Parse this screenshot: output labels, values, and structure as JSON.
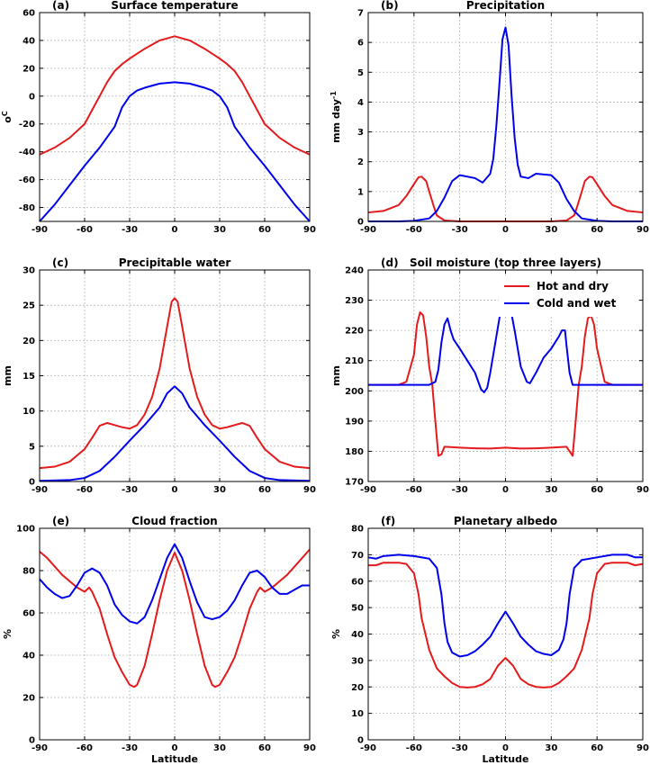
{
  "chart_data": [
    {
      "id": "a",
      "panel_label": "(a)",
      "type": "line",
      "title": "Surface temperature",
      "xlabel": "",
      "ylabel": "oC",
      "ylabel_base": "o",
      "ylabel_sup": "C",
      "xlim": [
        -90,
        90
      ],
      "ylim": [
        -90,
        60
      ],
      "xticks": [
        -90,
        -60,
        -30,
        0,
        30,
        60,
        90
      ],
      "yticks": [
        -80,
        -60,
        -40,
        -20,
        0,
        20,
        40,
        60
      ],
      "grid": true,
      "series": [
        {
          "color": "#e41a1c",
          "x": [
            -90,
            -80,
            -70,
            -60,
            -55,
            -50,
            -45,
            -40,
            -35,
            -30,
            -20,
            -10,
            0,
            10,
            20,
            30,
            35,
            40,
            45,
            50,
            55,
            60,
            70,
            80,
            90
          ],
          "y": [
            -42,
            -37,
            -30,
            -20,
            -10,
            0,
            10,
            18,
            23,
            27,
            34,
            40,
            43,
            40,
            34,
            27,
            23,
            18,
            10,
            0,
            -10,
            -20,
            -30,
            -37,
            -42
          ]
        },
        {
          "color": "#0000ee",
          "x": [
            -90,
            -80,
            -70,
            -60,
            -50,
            -40,
            -35,
            -30,
            -25,
            -20,
            -10,
            0,
            10,
            20,
            25,
            30,
            35,
            40,
            50,
            60,
            70,
            80,
            90
          ],
          "y": [
            -90,
            -78,
            -64,
            -50,
            -37,
            -22,
            -8,
            0,
            4,
            6,
            9,
            10,
            9,
            6,
            4,
            0,
            -8,
            -22,
            -37,
            -50,
            -64,
            -78,
            -90
          ]
        }
      ]
    },
    {
      "id": "b",
      "panel_label": "(b)",
      "type": "line",
      "title": "Precipitation",
      "xlabel": "",
      "ylabel": "mm day-1",
      "ylabel_base": "mm day",
      "ylabel_sup": "-1",
      "xlim": [
        -90,
        90
      ],
      "ylim": [
        0,
        7
      ],
      "xticks": [
        -90,
        -60,
        -30,
        0,
        30,
        60,
        90
      ],
      "yticks": [
        0,
        1,
        2,
        3,
        4,
        5,
        6,
        7
      ],
      "grid": true,
      "series": [
        {
          "color": "#e41a1c",
          "x": [
            -90,
            -80,
            -70,
            -65,
            -60,
            -57,
            -55,
            -52,
            -50,
            -47,
            -45,
            -40,
            -30,
            0,
            30,
            40,
            45,
            47,
            50,
            52,
            55,
            57,
            60,
            65,
            70,
            80,
            90
          ],
          "y": [
            0.3,
            0.35,
            0.55,
            0.85,
            1.25,
            1.48,
            1.5,
            1.35,
            1.0,
            0.5,
            0.2,
            0.03,
            0,
            0,
            0,
            0.03,
            0.2,
            0.5,
            1.0,
            1.35,
            1.5,
            1.48,
            1.25,
            0.85,
            0.55,
            0.35,
            0.3
          ]
        },
        {
          "color": "#0000ee",
          "x": [
            -90,
            -70,
            -60,
            -50,
            -45,
            -40,
            -35,
            -30,
            -20,
            -15,
            -10,
            -8,
            -6,
            -4,
            -2,
            0,
            2,
            4,
            6,
            8,
            10,
            15,
            20,
            30,
            35,
            40,
            45,
            50,
            60,
            70,
            90
          ],
          "y": [
            0,
            0,
            0.02,
            0.1,
            0.35,
            0.8,
            1.35,
            1.55,
            1.45,
            1.3,
            1.6,
            2.1,
            3.2,
            4.6,
            6.1,
            6.5,
            5.9,
            4.2,
            2.8,
            1.9,
            1.5,
            1.45,
            1.6,
            1.55,
            1.3,
            0.75,
            0.35,
            0.1,
            0.02,
            0,
            0
          ]
        }
      ]
    },
    {
      "id": "c",
      "panel_label": "(c)",
      "type": "line",
      "title": "Precipitable water",
      "xlabel": "",
      "ylabel": "mm",
      "xlim": [
        -90,
        90
      ],
      "ylim": [
        0,
        30
      ],
      "xticks": [
        -90,
        -60,
        -30,
        0,
        30,
        60,
        90
      ],
      "yticks": [
        0,
        5,
        10,
        15,
        20,
        25,
        30
      ],
      "grid": true,
      "series": [
        {
          "color": "#e41a1c",
          "x": [
            -90,
            -80,
            -70,
            -60,
            -55,
            -50,
            -45,
            -40,
            -35,
            -30,
            -25,
            -20,
            -15,
            -10,
            -5,
            -2,
            0,
            2,
            5,
            10,
            15,
            20,
            25,
            30,
            35,
            40,
            45,
            50,
            55,
            60,
            70,
            80,
            90
          ],
          "y": [
            1.9,
            2.1,
            2.8,
            4.6,
            6.2,
            7.9,
            8.3,
            8.0,
            7.7,
            7.5,
            8.0,
            9.5,
            12.0,
            16.0,
            22.0,
            25.5,
            26,
            25.5,
            22.0,
            16.0,
            12.0,
            9.5,
            8.0,
            7.5,
            7.7,
            8.0,
            8.3,
            7.9,
            6.2,
            4.6,
            2.8,
            2.1,
            1.9
          ]
        },
        {
          "color": "#0000ee",
          "x": [
            -90,
            -70,
            -60,
            -50,
            -40,
            -30,
            -20,
            -10,
            -5,
            0,
            5,
            10,
            20,
            30,
            40,
            50,
            60,
            70,
            90
          ],
          "y": [
            0.1,
            0.2,
            0.5,
            1.5,
            3.5,
            5.8,
            8.0,
            10.5,
            12.5,
            13.5,
            12.5,
            10.5,
            8.0,
            5.8,
            3.5,
            1.5,
            0.5,
            0.2,
            0.1
          ]
        }
      ]
    },
    {
      "id": "d",
      "panel_label": "(d)",
      "type": "line",
      "title": "Soil moisture (top three layers)",
      "xlabel": "",
      "ylabel": "mm",
      "xlim": [
        -90,
        90
      ],
      "ylim": [
        170,
        240
      ],
      "xticks": [
        -90,
        -60,
        -30,
        0,
        30,
        60,
        90
      ],
      "yticks": [
        170,
        180,
        190,
        200,
        210,
        220,
        230,
        240
      ],
      "grid": true,
      "legend": {
        "position": "top-right",
        "entries": [
          "Hot and dry",
          "Cold and wet"
        ]
      },
      "series": [
        {
          "name": "Hot and dry",
          "color": "#e41a1c",
          "x": [
            -90,
            -70,
            -65,
            -60,
            -58,
            -56,
            -54,
            -52,
            -50,
            -48,
            -46,
            -44,
            -42,
            -40,
            -30,
            -20,
            -10,
            0,
            10,
            20,
            30,
            40,
            42,
            44,
            46,
            48,
            50,
            52,
            54,
            56,
            58,
            60,
            65,
            70,
            90
          ],
          "y": [
            202,
            202,
            203,
            212,
            222,
            226,
            225,
            218,
            208,
            202,
            190,
            178.5,
            179,
            181.5,
            181.2,
            181,
            180.9,
            181.2,
            180.9,
            181,
            181.2,
            181.5,
            180,
            178.5,
            190,
            202,
            208,
            218,
            224,
            225,
            222,
            214,
            203,
            202,
            202
          ]
        },
        {
          "name": "Cold and wet",
          "color": "#0000ee",
          "x": [
            -90,
            -50,
            -46,
            -44,
            -42,
            -40,
            -38,
            -36,
            -34,
            -30,
            -25,
            -20,
            -16,
            -14,
            -12,
            -10,
            -6,
            -3,
            0,
            3,
            6,
            10,
            14,
            16,
            20,
            25,
            30,
            35,
            37,
            39,
            40,
            42,
            44,
            46,
            50,
            90
          ],
          "y": [
            202,
            202,
            203,
            207,
            216,
            222,
            224,
            220,
            217,
            214,
            210,
            206,
            200.5,
            199.5,
            201,
            206,
            218,
            227,
            230.5,
            228,
            220,
            208,
            203,
            202.5,
            206,
            211,
            214,
            218,
            220,
            220,
            215,
            206,
            202,
            202,
            202,
            202
          ]
        }
      ]
    },
    {
      "id": "e",
      "panel_label": "(e)",
      "type": "line",
      "title": "Cloud fraction",
      "xlabel": "Latitude",
      "ylabel": "%",
      "xlim": [
        -90,
        90
      ],
      "ylim": [
        0,
        100
      ],
      "xticks": [
        -90,
        -60,
        -30,
        0,
        30,
        60,
        90
      ],
      "yticks": [
        0,
        20,
        40,
        60,
        80,
        100
      ],
      "grid": true,
      "series": [
        {
          "color": "#e41a1c",
          "x": [
            -90,
            -85,
            -80,
            -75,
            -70,
            -65,
            -60,
            -57,
            -55,
            -50,
            -45,
            -40,
            -35,
            -30,
            -27,
            -25,
            -20,
            -15,
            -10,
            -5,
            0,
            5,
            10,
            15,
            20,
            25,
            27,
            30,
            35,
            40,
            45,
            50,
            55,
            57,
            60,
            65,
            70,
            75,
            80,
            85,
            90
          ],
          "y": [
            89,
            86,
            82,
            78,
            75,
            72,
            70,
            72,
            70,
            62,
            50,
            39,
            32,
            26,
            25,
            26,
            35,
            50,
            66,
            80,
            88.5,
            80,
            66,
            50,
            35,
            26,
            25,
            26,
            32,
            39,
            50,
            62,
            70,
            72,
            70,
            72,
            75,
            78,
            82,
            86,
            90
          ]
        },
        {
          "color": "#0000ee",
          "x": [
            -90,
            -85,
            -80,
            -75,
            -70,
            -65,
            -60,
            -55,
            -50,
            -45,
            -40,
            -35,
            -30,
            -25,
            -20,
            -15,
            -10,
            -5,
            0,
            5,
            10,
            15,
            20,
            25,
            30,
            35,
            40,
            45,
            50,
            55,
            60,
            65,
            70,
            75,
            80,
            85,
            90
          ],
          "y": [
            76,
            72,
            69,
            67,
            68,
            73,
            79,
            81,
            79,
            73,
            64,
            59,
            56,
            55,
            58,
            66,
            76,
            86,
            92.5,
            86,
            75,
            65,
            58,
            57,
            58,
            61,
            66,
            73,
            79,
            80,
            77,
            72,
            69,
            69,
            71,
            73,
            73
          ]
        }
      ]
    },
    {
      "id": "f",
      "panel_label": "(f)",
      "type": "line",
      "title": "Planetary albedo",
      "xlabel": "Latitude",
      "ylabel": "%",
      "xlim": [
        -90,
        90
      ],
      "ylim": [
        0,
        80
      ],
      "xticks": [
        -90,
        -60,
        -30,
        0,
        30,
        60,
        90
      ],
      "yticks": [
        0,
        10,
        20,
        30,
        40,
        50,
        60,
        70,
        80
      ],
      "grid": true,
      "series": [
        {
          "color": "#e41a1c",
          "x": [
            -90,
            -85,
            -80,
            -70,
            -65,
            -60,
            -57,
            -55,
            -50,
            -45,
            -40,
            -35,
            -30,
            -25,
            -20,
            -15,
            -10,
            -5,
            0,
            5,
            10,
            15,
            20,
            25,
            30,
            35,
            40,
            45,
            50,
            55,
            57,
            60,
            65,
            70,
            80,
            85,
            90
          ],
          "y": [
            66,
            66,
            67,
            67,
            66.5,
            63,
            55,
            46,
            34,
            27,
            24,
            21.5,
            20,
            19.8,
            20,
            21,
            23,
            28,
            31,
            28,
            23,
            21,
            20,
            19.8,
            20,
            21.5,
            24,
            27,
            34,
            46,
            55,
            63,
            66.5,
            67,
            67,
            66,
            66.5
          ]
        },
        {
          "color": "#0000ee",
          "x": [
            -90,
            -85,
            -80,
            -70,
            -60,
            -50,
            -45,
            -42,
            -40,
            -38,
            -35,
            -30,
            -25,
            -20,
            -15,
            -10,
            -5,
            0,
            5,
            10,
            15,
            20,
            25,
            30,
            35,
            38,
            40,
            42,
            45,
            50,
            60,
            70,
            80,
            85,
            90
          ],
          "y": [
            69,
            68.5,
            69.5,
            70,
            69.5,
            68.5,
            65,
            55,
            44,
            37,
            33,
            31.5,
            32,
            33.5,
            36,
            39,
            44,
            48.5,
            44,
            39,
            36,
            33.5,
            32.5,
            32,
            34,
            38,
            44,
            55,
            65,
            68,
            69,
            70,
            70,
            69,
            69
          ]
        }
      ]
    }
  ]
}
